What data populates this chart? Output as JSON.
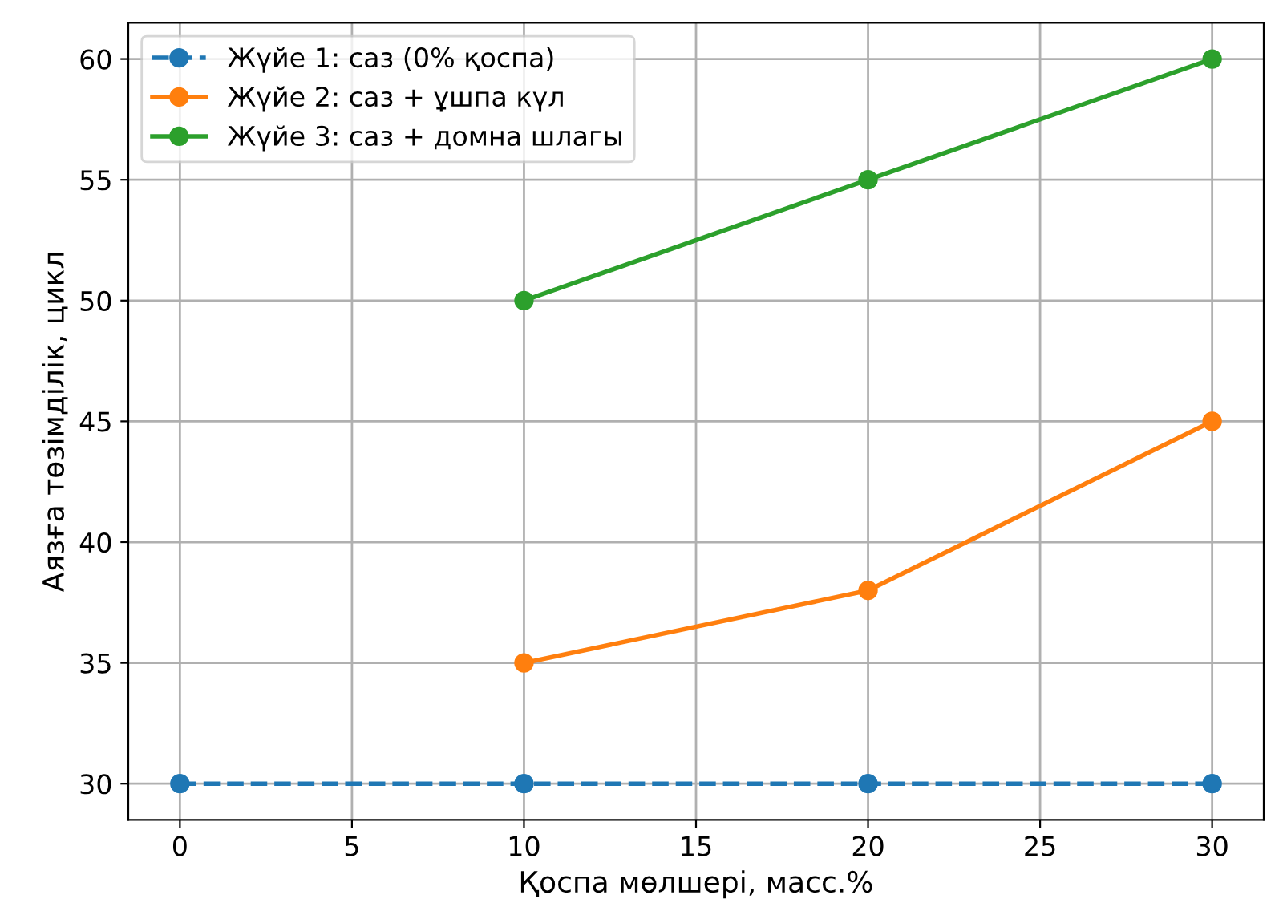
{
  "chart_data": {
    "type": "line",
    "xlabel": "Қоспа мөлшері, масс.%",
    "ylabel": "Аязға төзімділік, цикл",
    "xlim": [
      -1.5,
      31.5
    ],
    "xticks": [
      0,
      5,
      10,
      15,
      20,
      25,
      30
    ],
    "ylim": [
      28.5,
      61.5
    ],
    "yticks": [
      30,
      35,
      40,
      45,
      50,
      55,
      60
    ],
    "grid": true,
    "legend": "top left",
    "marker": "circle",
    "series": [
      {
        "name": "Жүйе 1: саз (0% қоспа)",
        "color": "#1f77b4",
        "line_style": "dashed",
        "x": [
          0,
          10,
          20,
          30
        ],
        "values": [
          30,
          30,
          30,
          30
        ]
      },
      {
        "name": "Жүйе 2: саз + ұшпа күл",
        "color": "#ff7f0e",
        "line_style": "solid",
        "x": [
          10,
          20,
          30
        ],
        "values": [
          35,
          38,
          45
        ]
      },
      {
        "name": "Жүйе 3: саз + домна шлагы",
        "color": "#2ca02c",
        "line_style": "solid",
        "x": [
          10,
          20,
          30
        ],
        "values": [
          50,
          55,
          60
        ]
      }
    ]
  }
}
